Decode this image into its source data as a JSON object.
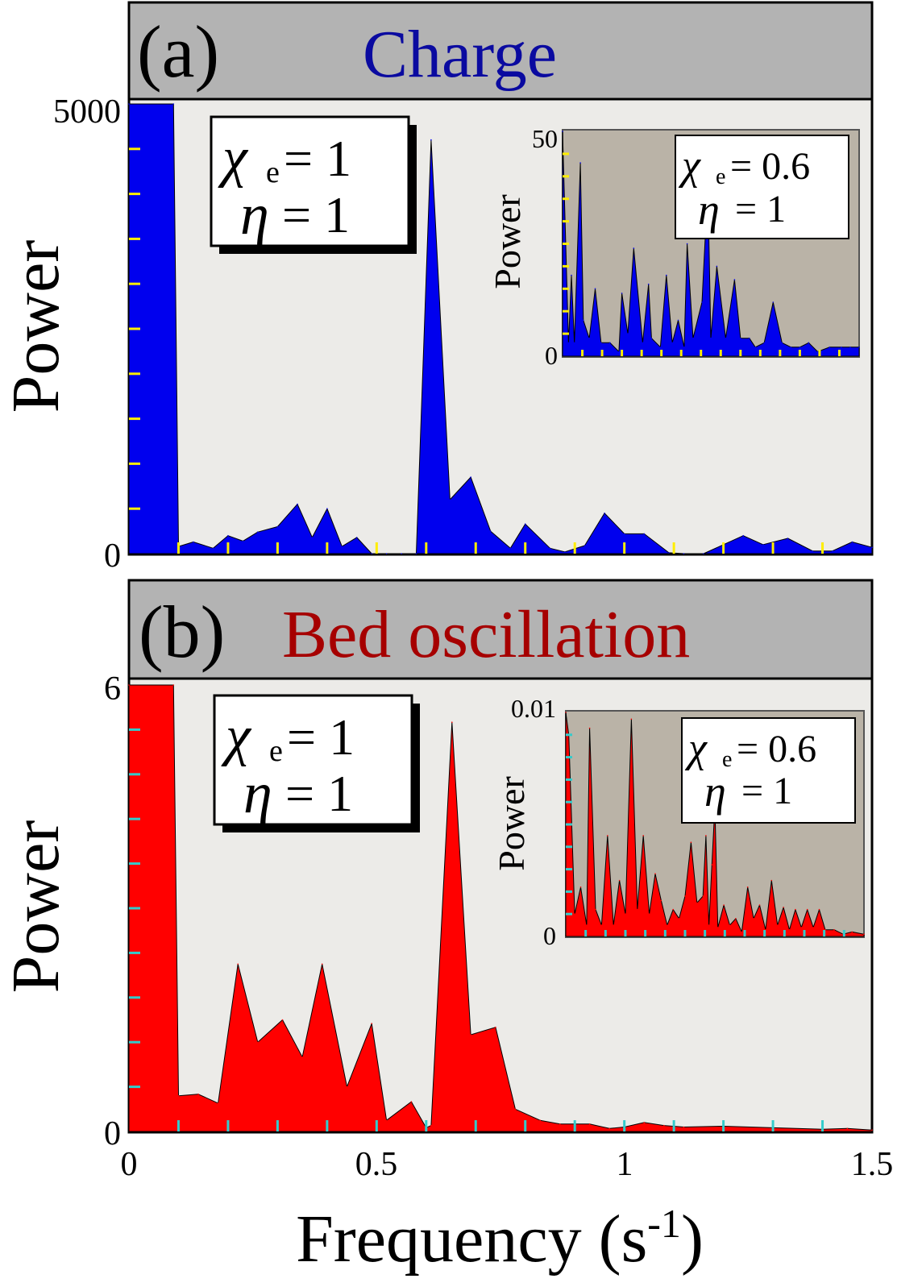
{
  "figure": {
    "xlabel": "Frequency (s",
    "xlabel_exp": "-1",
    "xlabel_close": ")",
    "xticks": [
      "0",
      "0.5",
      "1",
      "1.5"
    ]
  },
  "chart_data": [
    {
      "id": "a",
      "type": "area",
      "panel_label": "(a)",
      "title": "Charge",
      "ylabel": "Power",
      "xlim": [
        0,
        1.5
      ],
      "ylim": [
        0,
        5000
      ],
      "yticks": [
        "5000",
        "0"
      ],
      "colors": {
        "fill": "#0000ee",
        "title": "#0a0aa0",
        "tick": "#ffee00"
      },
      "legend": {
        "chi_symbol": "χ",
        "chi_sub": "e",
        "chi_value": "= 1",
        "eta_symbol": "η",
        "eta_value": "= 1"
      },
      "x": [
        0.0,
        0.09,
        0.1,
        0.13,
        0.17,
        0.2,
        0.23,
        0.26,
        0.3,
        0.34,
        0.37,
        0.4,
        0.43,
        0.46,
        0.49,
        0.52,
        0.55,
        0.58,
        0.61,
        0.648,
        0.69,
        0.73,
        0.77,
        0.8,
        0.85,
        0.88,
        0.92,
        0.96,
        1.0,
        1.04,
        1.09,
        1.12,
        1.16,
        1.24,
        1.28,
        1.33,
        1.38,
        1.42,
        1.46,
        1.5
      ],
      "values": [
        5000,
        5000,
        80,
        130,
        60,
        200,
        140,
        240,
        300,
        550,
        180,
        500,
        80,
        180,
        0,
        0,
        0,
        0,
        4600,
        600,
        850,
        250,
        60,
        330,
        60,
        20,
        90,
        450,
        220,
        220,
        10,
        0,
        0,
        200,
        100,
        170,
        30,
        30,
        130,
        70
      ],
      "inset": {
        "ylabel": "Power",
        "ylim": [
          0,
          50
        ],
        "yticks": [
          "50",
          "0"
        ],
        "legend": {
          "chi_symbol": "χ",
          "chi_sub": "e",
          "chi_value": "= 0.6",
          "eta_symbol": "η",
          "eta_value": "= 1"
        },
        "x": [
          0.0,
          0.02,
          0.03,
          0.04,
          0.06,
          0.07,
          0.09,
          0.11,
          0.13,
          0.16,
          0.19,
          0.2,
          0.22,
          0.24,
          0.27,
          0.29,
          0.3,
          0.33,
          0.35,
          0.37,
          0.39,
          0.41,
          0.42,
          0.44,
          0.47,
          0.49,
          0.5,
          0.52,
          0.55,
          0.58,
          0.6,
          0.63,
          0.65,
          0.68,
          0.71,
          0.74,
          0.77,
          0.8,
          0.83,
          0.86,
          0.9,
          0.94,
          0.97,
          1.0
        ],
        "values": [
          50,
          3,
          18,
          3,
          43,
          8,
          4,
          15,
          3,
          3,
          1,
          14,
          5,
          24,
          3,
          16,
          4,
          2,
          18,
          3,
          8,
          2,
          25,
          4,
          12,
          38,
          4,
          20,
          4,
          17,
          4,
          4,
          2,
          3,
          12,
          3,
          2,
          2,
          3,
          1,
          2,
          2,
          2,
          2
        ]
      }
    },
    {
      "id": "b",
      "type": "area",
      "panel_label": "(b)",
      "title": "Bed oscillation",
      "ylabel": "Power",
      "xlim": [
        0,
        1.5
      ],
      "ylim": [
        0,
        6
      ],
      "yticks": [
        "6",
        "0"
      ],
      "colors": {
        "fill": "#ff0000",
        "title": "#a60000",
        "tick": "#33cccc"
      },
      "legend": {
        "chi_symbol": "χ",
        "chi_sub": "e",
        "chi_value": "= 1",
        "eta_symbol": "η",
        "eta_value": "= 1"
      },
      "x": [
        0.0,
        0.09,
        0.1,
        0.14,
        0.18,
        0.22,
        0.26,
        0.31,
        0.35,
        0.39,
        0.44,
        0.49,
        0.52,
        0.57,
        0.6,
        0.61,
        0.652,
        0.69,
        0.74,
        0.78,
        0.83,
        0.87,
        0.93,
        0.97,
        1.0,
        1.04,
        1.08,
        1.12,
        1.2,
        1.3,
        1.4,
        1.45,
        1.5
      ],
      "values": [
        6,
        6,
        0.48,
        0.5,
        0.38,
        2.25,
        1.2,
        1.5,
        1.0,
        2.25,
        0.6,
        1.45,
        0.15,
        0.4,
        0.05,
        0.08,
        5.5,
        1.3,
        1.4,
        0.3,
        0.15,
        0.1,
        0.1,
        0.04,
        0.06,
        0.12,
        0.08,
        0.06,
        0.07,
        0.05,
        0.03,
        0.04,
        0.02
      ],
      "inset": {
        "ylabel": "Power",
        "ylim": [
          0,
          0.01
        ],
        "yticks": [
          "0.01",
          "0"
        ],
        "legend": {
          "chi_symbol": "χ",
          "chi_sub": "e",
          "chi_value": "= 0.6",
          "eta_symbol": "η",
          "eta_value": "= 1"
        },
        "x": [
          0.0,
          0.01,
          0.03,
          0.05,
          0.07,
          0.08,
          0.1,
          0.12,
          0.14,
          0.16,
          0.18,
          0.2,
          0.22,
          0.24,
          0.26,
          0.28,
          0.3,
          0.32,
          0.34,
          0.36,
          0.38,
          0.4,
          0.42,
          0.44,
          0.46,
          0.47,
          0.48,
          0.49,
          0.5,
          0.51,
          0.53,
          0.55,
          0.57,
          0.59,
          0.61,
          0.63,
          0.65,
          0.67,
          0.69,
          0.71,
          0.73,
          0.75,
          0.77,
          0.79,
          0.81,
          0.83,
          0.85,
          0.87,
          0.9,
          0.93,
          0.96,
          1.0
        ],
        "values": [
          0.01,
          0.009,
          0.001,
          0.0022,
          0.0005,
          0.0093,
          0.0012,
          0.0005,
          0.0045,
          0.0005,
          0.0025,
          0.001,
          0.0097,
          0.0012,
          0.0045,
          0.001,
          0.0028,
          0.0016,
          0.0005,
          0.0012,
          0.0008,
          0.0018,
          0.0042,
          0.0015,
          0.0018,
          0.0045,
          0.0005,
          0.0032,
          0.0058,
          0.0004,
          0.0014,
          0.0005,
          0.0008,
          0.0002,
          0.0022,
          0.0008,
          0.0014,
          0.0003,
          0.0025,
          0.0005,
          0.0013,
          0.0003,
          0.0012,
          0.0004,
          0.0012,
          0.0004,
          0.0012,
          0.0003,
          0.0003,
          0.0001,
          0.0002,
          0.0001
        ]
      }
    }
  ]
}
